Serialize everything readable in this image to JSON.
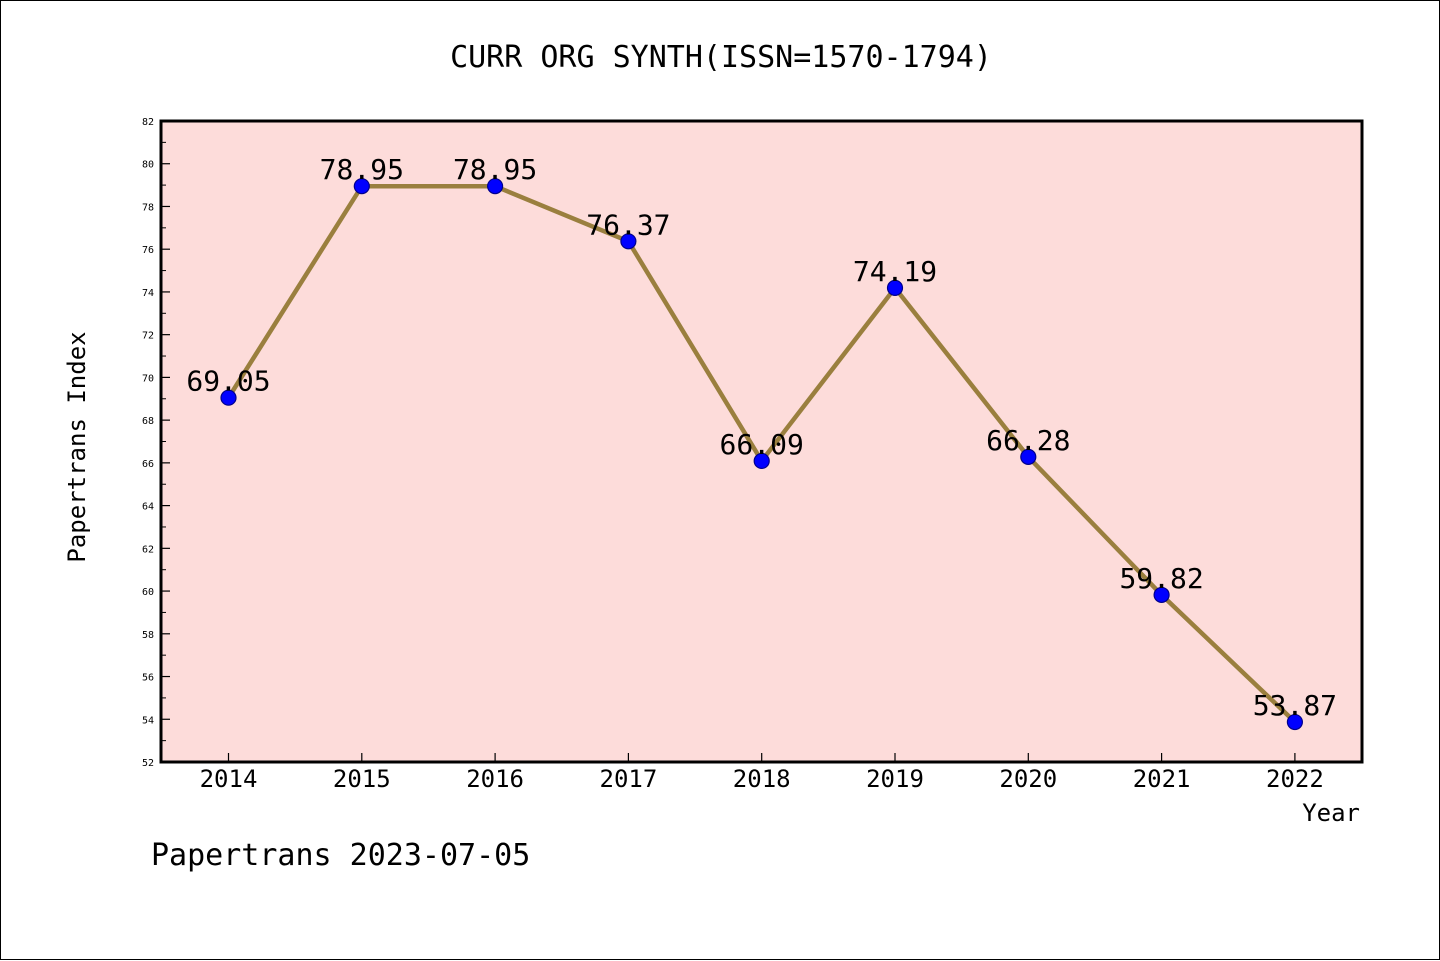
{
  "chart_data": {
    "type": "line",
    "title": "CURR ORG SYNTH(ISSN=1570-1794)",
    "xlabel": "Year",
    "ylabel": "Papertrans Index",
    "categories": [
      "2014",
      "2015",
      "2016",
      "2017",
      "2018",
      "2019",
      "2020",
      "2021",
      "2022"
    ],
    "series": [
      {
        "values": [
          69.05,
          78.95,
          78.95,
          76.37,
          66.09,
          74.19,
          66.28,
          59.82,
          53.87
        ],
        "labels": [
          "69.05",
          "78.95",
          "78.95",
          "76.37",
          "66.09",
          "74.19",
          "66.28",
          "59.82",
          "53.87"
        ]
      }
    ],
    "ylim": [
      52,
      82
    ],
    "yticks": [
      "52",
      "54",
      "56",
      "58",
      "60",
      "62",
      "64",
      "66",
      "68",
      "70",
      "72",
      "74",
      "76",
      "78",
      "80",
      "82"
    ],
    "grid": false,
    "legend": "none",
    "colors": {
      "plot_background": "#fddcda",
      "line": "#9a7f3e",
      "marker": "#0000ff",
      "marker_edge": "#00008b"
    }
  },
  "footer": {
    "text": "Papertrans 2023-07-05"
  }
}
